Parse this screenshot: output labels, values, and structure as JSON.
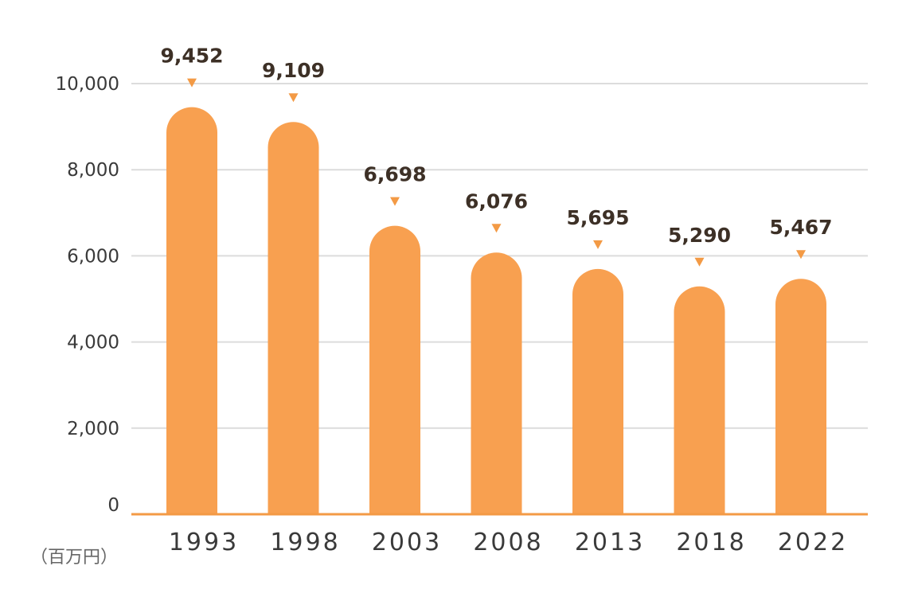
{
  "chart_data": {
    "type": "bar",
    "categories": [
      "1993",
      "1998",
      "2003",
      "2008",
      "2013",
      "2018",
      "2022"
    ],
    "values": [
      9452,
      9109,
      6698,
      6076,
      5695,
      5290,
      5467
    ],
    "data_labels": [
      "9,452",
      "9,109",
      "6,698",
      "6,076",
      "5,695",
      "5,290",
      "5,467"
    ],
    "ylim": [
      0,
      10000
    ],
    "yticks": [
      0,
      2000,
      4000,
      6000,
      8000,
      10000
    ],
    "ytick_labels": [
      "0",
      "2,000",
      "4,000",
      "6,000",
      "8,000",
      "10,000"
    ],
    "unit_label": "（百万円）",
    "grid": true,
    "colors": {
      "bar": "#f8a050",
      "marker": "#f39a45",
      "axis": "#f39a45",
      "grid": "#dcdcdc",
      "label": "#3d3026"
    }
  }
}
